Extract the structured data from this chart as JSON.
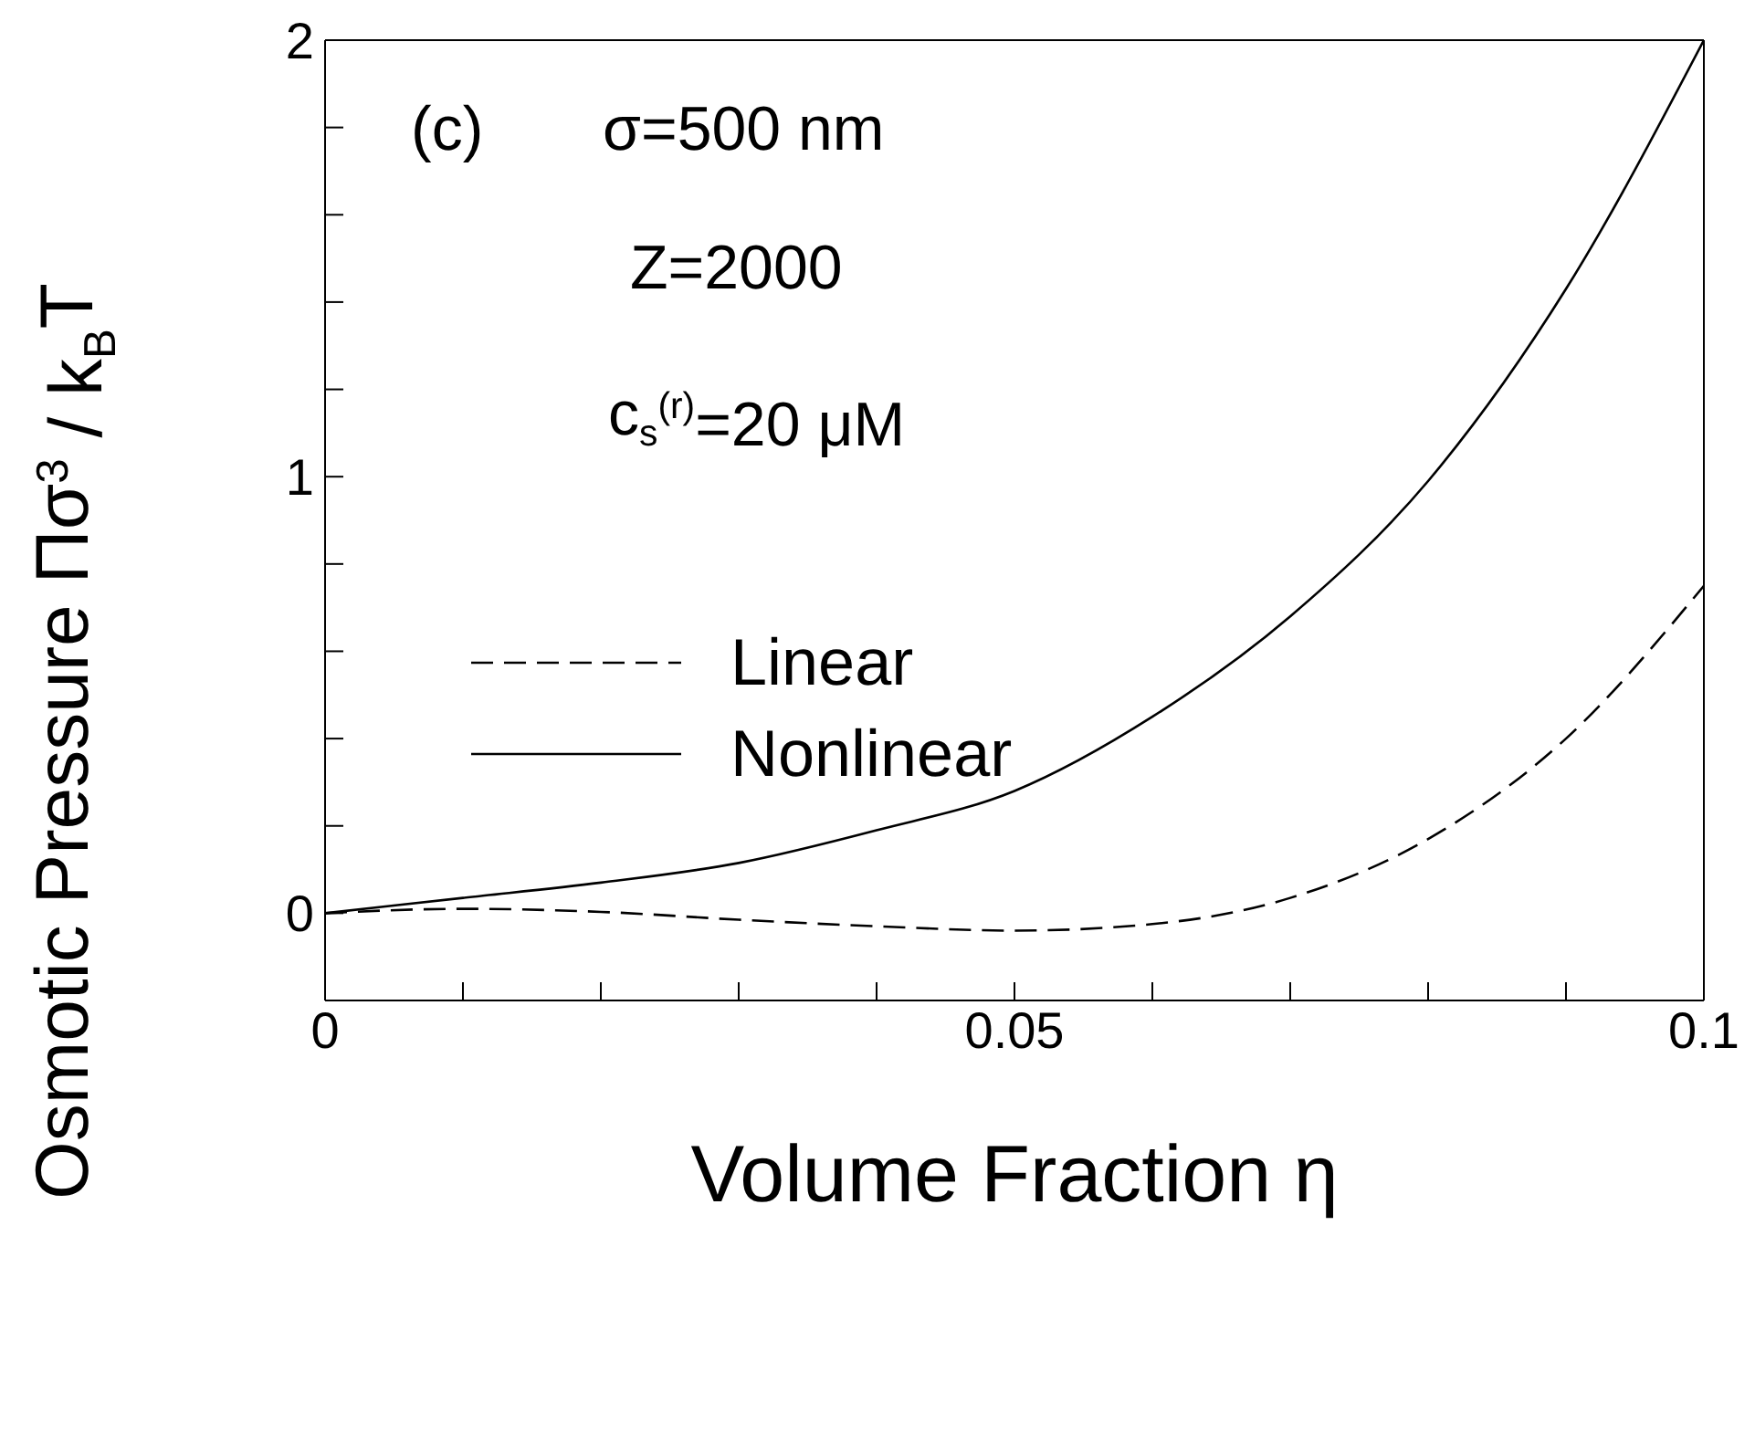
{
  "chart_data": {
    "type": "line",
    "xlabel": "Volume Fraction  η",
    "ylabel": "Osmotic Pressure  Πσ$^{3}$ / k$_{B}$T",
    "annotations": [
      "(c)",
      "σ=500 nm",
      "Z=2000",
      "c$_{s}$$^{(r)}$=20 μM"
    ],
    "x": [
      0,
      0.01,
      0.02,
      0.03,
      0.04,
      0.05,
      0.06,
      0.07,
      0.08,
      0.09,
      0.1
    ],
    "series": [
      {
        "name": "Linear",
        "color": "#000000",
        "line_style": "dashed",
        "values": [
          0,
          0.01,
          0.003,
          -0.015,
          -0.03,
          -0.04,
          -0.025,
          0.035,
          0.17,
          0.4,
          0.75
        ]
      },
      {
        "name": "Nonlinear",
        "color": "#000000",
        "line_style": "solid",
        "values": [
          0,
          0.035,
          0.07,
          0.115,
          0.19,
          0.28,
          0.45,
          0.68,
          0.99,
          1.43,
          2.0
        ]
      }
    ],
    "xlim": [
      0,
      0.1
    ],
    "ylim": [
      -0.2,
      2
    ],
    "xticks": [
      0,
      {
        "value": 0.01,
        "label": null
      },
      {
        "value": 0.02,
        "label": null
      },
      {
        "value": 0.03,
        "label": null
      },
      {
        "value": 0.04,
        "label": null
      },
      0.05,
      {
        "value": 0.06,
        "label": null
      },
      {
        "value": 0.07,
        "label": null
      },
      {
        "value": 0.08,
        "label": null
      },
      {
        "value": 0.09,
        "label": null
      },
      0.1
    ],
    "yticks": [
      0,
      {
        "value": 0.2,
        "label": null
      },
      {
        "value": 0.4,
        "label": null
      },
      {
        "value": 0.6,
        "label": null
      },
      {
        "value": 0.8,
        "label": null
      },
      1,
      {
        "value": 1.2,
        "label": null
      },
      {
        "value": 1.4,
        "label": null
      },
      {
        "value": 1.6,
        "label": null
      },
      {
        "value": 1.8,
        "label": null
      },
      2
    ],
    "grid": false,
    "legend": "left",
    "marker": "none"
  }
}
